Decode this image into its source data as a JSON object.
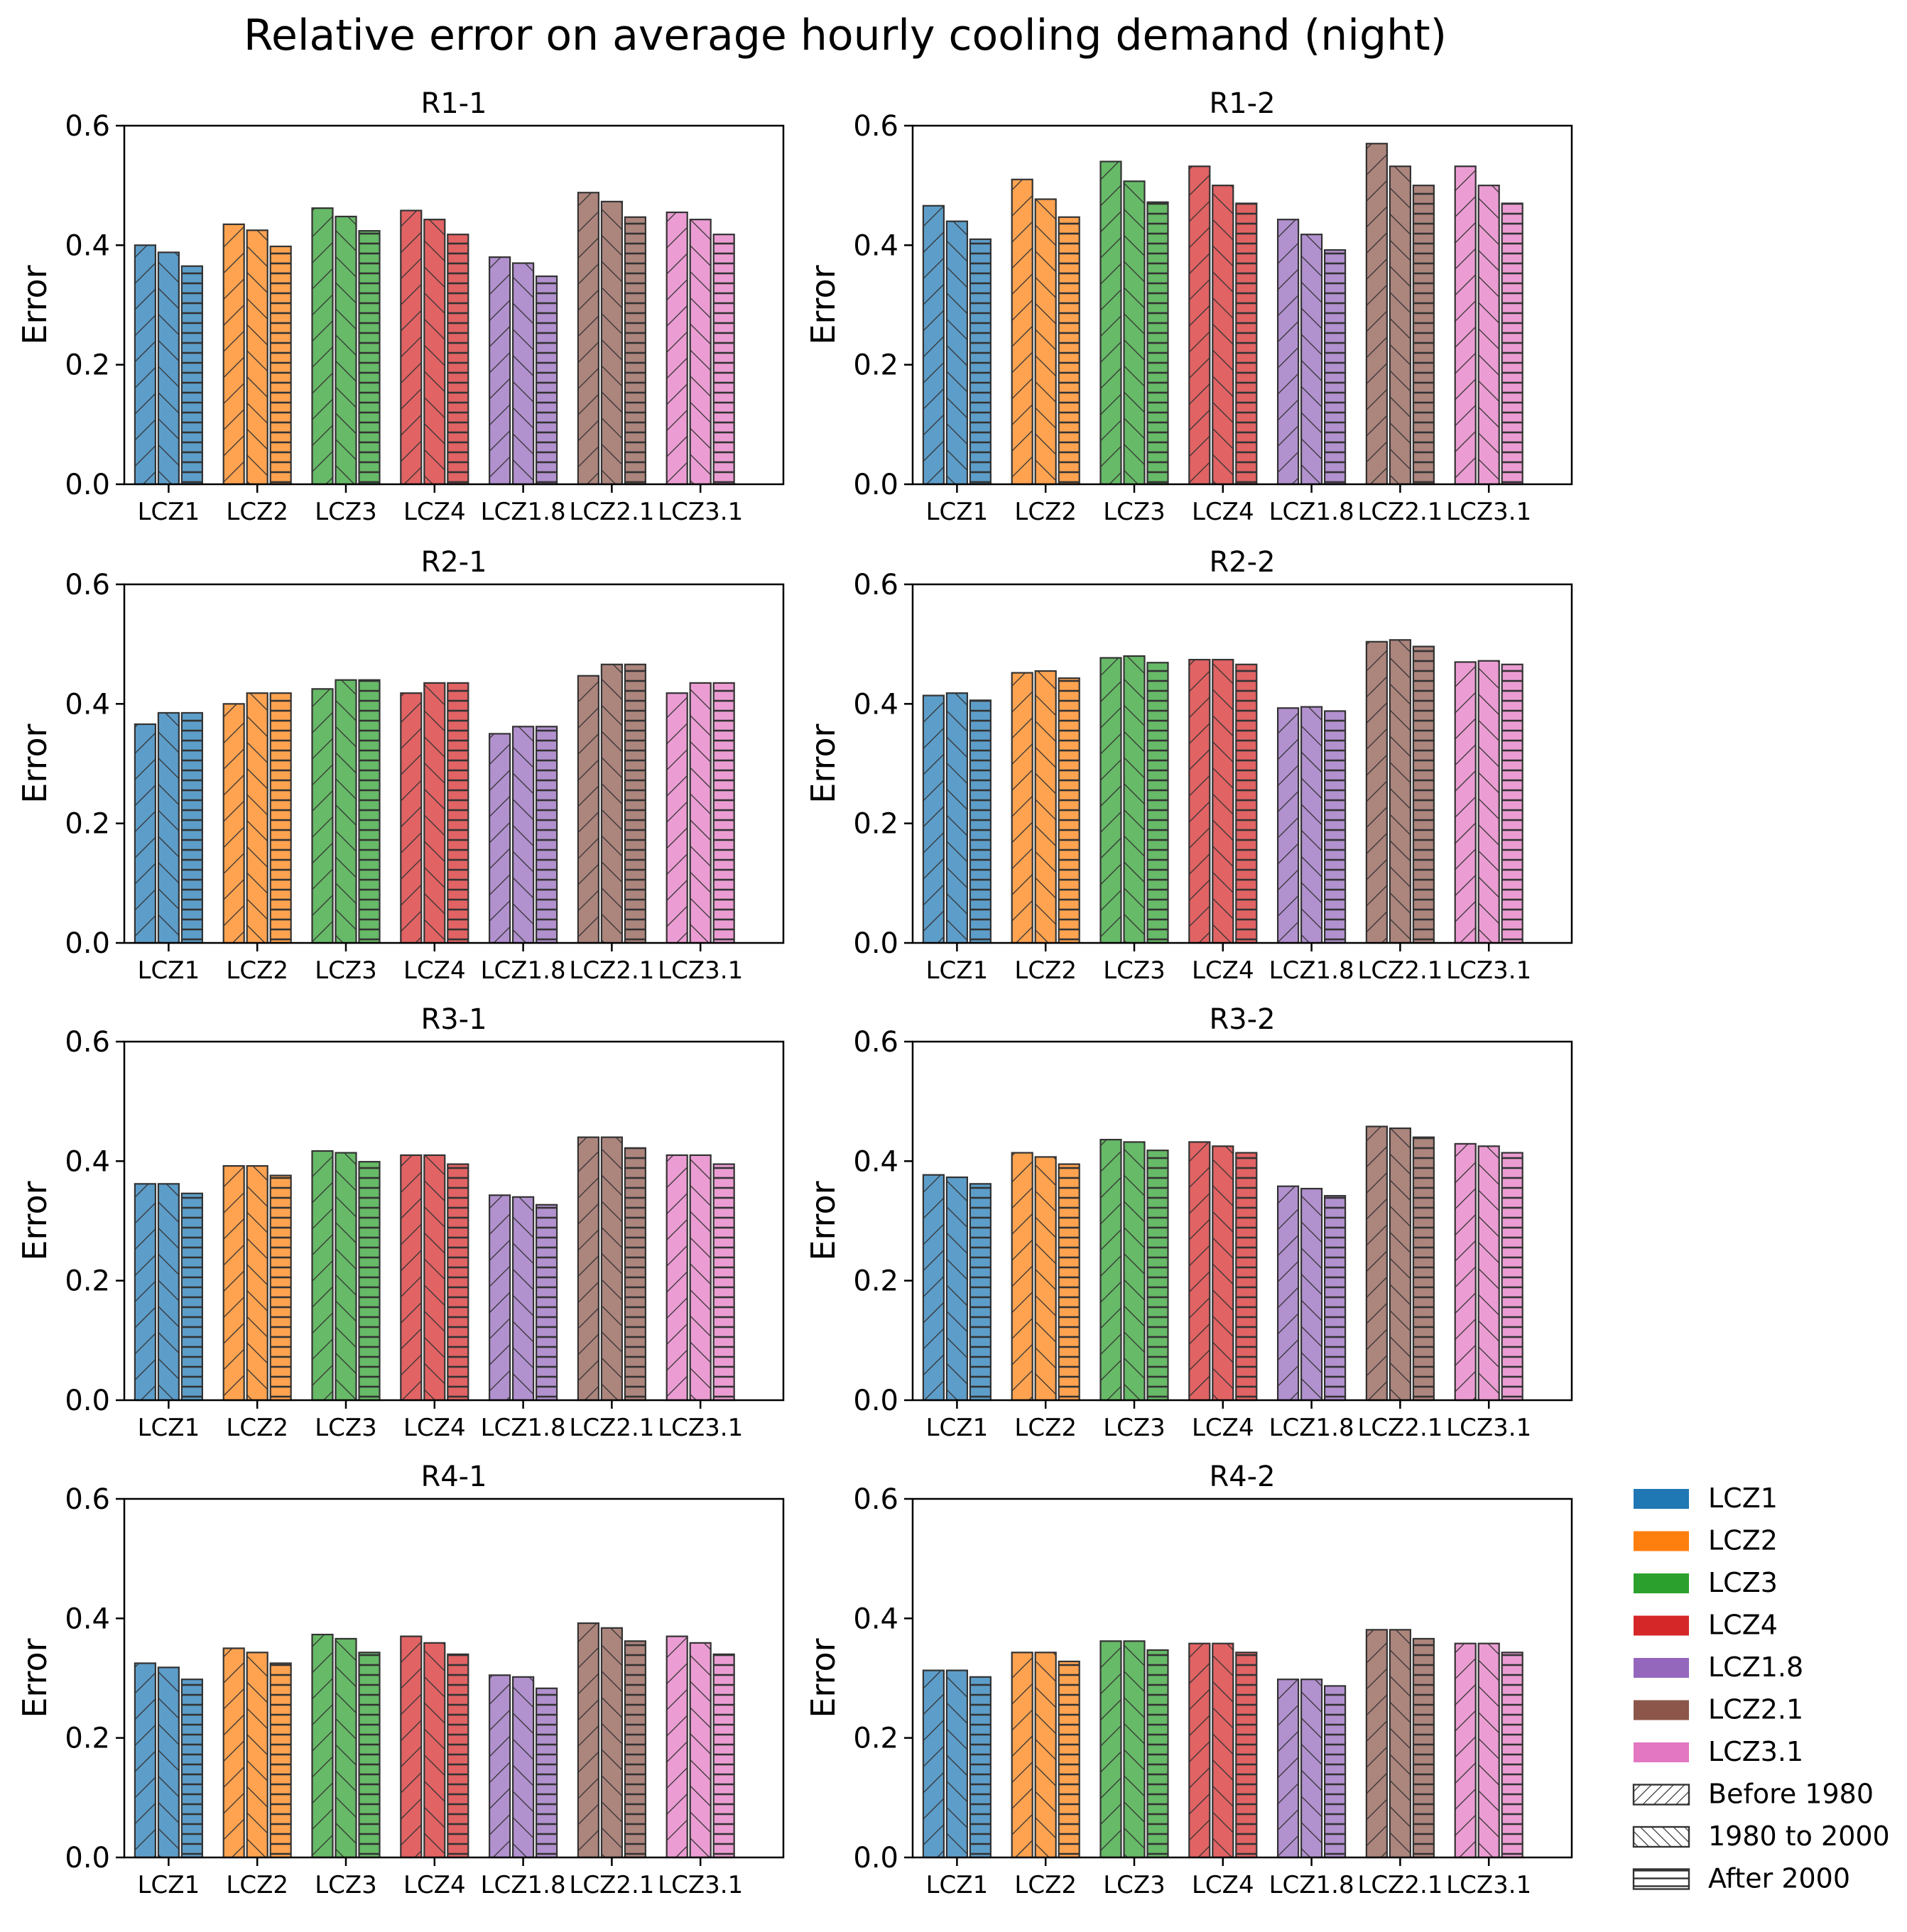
{
  "title": "Relative error on average hourly cooling demand (night)",
  "colors": {
    "LCZ1": "#1f77b4",
    "LCZ2": "#ff7f0e",
    "LCZ3": "#2ca02c",
    "LCZ4": "#d62728",
    "LCZ1.8": "#9467bd",
    "LCZ2.1": "#8c564b",
    "LCZ3.1": "#e377c2"
  },
  "legend": {
    "zones": [
      "LCZ1",
      "LCZ2",
      "LCZ3",
      "LCZ4",
      "LCZ1.8",
      "LCZ2.1",
      "LCZ3.1"
    ],
    "periods": [
      "Before 1980",
      "1980 to 2000",
      "After 2000"
    ]
  },
  "chart_data": [
    {
      "type": "bar",
      "title": "R1-1",
      "ylabel": "Error",
      "ylim": [
        0,
        0.6
      ],
      "yticks": [
        "0.0",
        "0.2",
        "0.4",
        "0.6"
      ],
      "categories": [
        "LCZ1",
        "LCZ2",
        "LCZ3",
        "LCZ4",
        "LCZ1.8",
        "LCZ2.1",
        "LCZ3.1"
      ],
      "series": [
        {
          "name": "Before 1980",
          "values": [
            0.4,
            0.435,
            0.462,
            0.458,
            0.38,
            0.488,
            0.455
          ]
        },
        {
          "name": "1980 to 2000",
          "values": [
            0.388,
            0.425,
            0.448,
            0.443,
            0.37,
            0.473,
            0.443
          ]
        },
        {
          "name": "After 2000",
          "values": [
            0.365,
            0.398,
            0.424,
            0.418,
            0.348,
            0.447,
            0.418
          ]
        }
      ]
    },
    {
      "type": "bar",
      "title": "R1-2",
      "ylabel": "Error",
      "ylim": [
        0,
        0.6
      ],
      "yticks": [
        "0.0",
        "0.2",
        "0.4",
        "0.6"
      ],
      "categories": [
        "LCZ1",
        "LCZ2",
        "LCZ3",
        "LCZ4",
        "LCZ1.8",
        "LCZ2.1",
        "LCZ3.1"
      ],
      "series": [
        {
          "name": "Before 1980",
          "values": [
            0.466,
            0.51,
            0.54,
            0.532,
            0.443,
            0.57,
            0.532
          ]
        },
        {
          "name": "1980 to 2000",
          "values": [
            0.44,
            0.477,
            0.507,
            0.5,
            0.418,
            0.532,
            0.5
          ]
        },
        {
          "name": "After 2000",
          "values": [
            0.41,
            0.447,
            0.472,
            0.47,
            0.392,
            0.5,
            0.47
          ]
        }
      ]
    },
    {
      "type": "bar",
      "title": "R2-1",
      "ylabel": "Error",
      "ylim": [
        0,
        0.6
      ],
      "yticks": [
        "0.0",
        "0.2",
        "0.4",
        "0.6"
      ],
      "categories": [
        "LCZ1",
        "LCZ2",
        "LCZ3",
        "LCZ4",
        "LCZ1.8",
        "LCZ2.1",
        "LCZ3.1"
      ],
      "series": [
        {
          "name": "Before 1980",
          "values": [
            0.366,
            0.4,
            0.425,
            0.418,
            0.35,
            0.447,
            0.418
          ]
        },
        {
          "name": "1980 to 2000",
          "values": [
            0.385,
            0.418,
            0.44,
            0.435,
            0.362,
            0.466,
            0.435
          ]
        },
        {
          "name": "After 2000",
          "values": [
            0.385,
            0.418,
            0.44,
            0.435,
            0.362,
            0.466,
            0.435
          ]
        }
      ]
    },
    {
      "type": "bar",
      "title": "R2-2",
      "ylabel": "Error",
      "ylim": [
        0,
        0.6
      ],
      "yticks": [
        "0.0",
        "0.2",
        "0.4",
        "0.6"
      ],
      "categories": [
        "LCZ1",
        "LCZ2",
        "LCZ3",
        "LCZ4",
        "LCZ1.8",
        "LCZ2.1",
        "LCZ3.1"
      ],
      "series": [
        {
          "name": "Before 1980",
          "values": [
            0.414,
            0.452,
            0.477,
            0.474,
            0.393,
            0.504,
            0.47
          ]
        },
        {
          "name": "1980 to 2000",
          "values": [
            0.418,
            0.455,
            0.48,
            0.474,
            0.395,
            0.507,
            0.472
          ]
        },
        {
          "name": "After 2000",
          "values": [
            0.406,
            0.443,
            0.469,
            0.466,
            0.388,
            0.496,
            0.466
          ]
        }
      ]
    },
    {
      "type": "bar",
      "title": "R3-1",
      "ylabel": "Error",
      "ylim": [
        0,
        0.6
      ],
      "yticks": [
        "0.0",
        "0.2",
        "0.4",
        "0.6"
      ],
      "categories": [
        "LCZ1",
        "LCZ2",
        "LCZ3",
        "LCZ4",
        "LCZ1.8",
        "LCZ2.1",
        "LCZ3.1"
      ],
      "series": [
        {
          "name": "Before 1980",
          "values": [
            0.362,
            0.392,
            0.417,
            0.41,
            0.343,
            0.44,
            0.41
          ]
        },
        {
          "name": "1980 to 2000",
          "values": [
            0.362,
            0.392,
            0.414,
            0.41,
            0.34,
            0.44,
            0.41
          ]
        },
        {
          "name": "After 2000",
          "values": [
            0.346,
            0.376,
            0.399,
            0.395,
            0.327,
            0.422,
            0.395
          ]
        }
      ]
    },
    {
      "type": "bar",
      "title": "R3-2",
      "ylabel": "Error",
      "ylim": [
        0,
        0.6
      ],
      "yticks": [
        "0.0",
        "0.2",
        "0.4",
        "0.6"
      ],
      "categories": [
        "LCZ1",
        "LCZ2",
        "LCZ3",
        "LCZ4",
        "LCZ1.8",
        "LCZ2.1",
        "LCZ3.1"
      ],
      "series": [
        {
          "name": "Before 1980",
          "values": [
            0.377,
            0.414,
            0.436,
            0.432,
            0.358,
            0.458,
            0.429
          ]
        },
        {
          "name": "1980 to 2000",
          "values": [
            0.373,
            0.407,
            0.432,
            0.425,
            0.354,
            0.455,
            0.425
          ]
        },
        {
          "name": "After 2000",
          "values": [
            0.362,
            0.395,
            0.418,
            0.414,
            0.342,
            0.44,
            0.414
          ]
        }
      ]
    },
    {
      "type": "bar",
      "title": "R4-1",
      "ylabel": "Error",
      "ylim": [
        0,
        0.6
      ],
      "yticks": [
        "0.0",
        "0.2",
        "0.4",
        "0.6"
      ],
      "categories": [
        "LCZ1",
        "LCZ2",
        "LCZ3",
        "LCZ4",
        "LCZ1.8",
        "LCZ2.1",
        "LCZ3.1"
      ],
      "series": [
        {
          "name": "Before 1980",
          "values": [
            0.325,
            0.35,
            0.373,
            0.37,
            0.305,
            0.392,
            0.37
          ]
        },
        {
          "name": "1980 to 2000",
          "values": [
            0.318,
            0.343,
            0.366,
            0.359,
            0.302,
            0.384,
            0.359
          ]
        },
        {
          "name": "After 2000",
          "values": [
            0.298,
            0.325,
            0.343,
            0.34,
            0.283,
            0.362,
            0.34
          ]
        }
      ]
    },
    {
      "type": "bar",
      "title": "R4-2",
      "ylabel": "Error",
      "ylim": [
        0,
        0.6
      ],
      "yticks": [
        "0.0",
        "0.2",
        "0.4",
        "0.6"
      ],
      "categories": [
        "LCZ1",
        "LCZ2",
        "LCZ3",
        "LCZ4",
        "LCZ1.8",
        "LCZ2.1",
        "LCZ3.1"
      ],
      "series": [
        {
          "name": "Before 1980",
          "values": [
            0.313,
            0.343,
            0.362,
            0.358,
            0.298,
            0.381,
            0.358
          ]
        },
        {
          "name": "1980 to 2000",
          "values": [
            0.313,
            0.343,
            0.362,
            0.358,
            0.298,
            0.381,
            0.358
          ]
        },
        {
          "name": "After 2000",
          "values": [
            0.302,
            0.328,
            0.347,
            0.343,
            0.287,
            0.366,
            0.343
          ]
        }
      ]
    }
  ]
}
